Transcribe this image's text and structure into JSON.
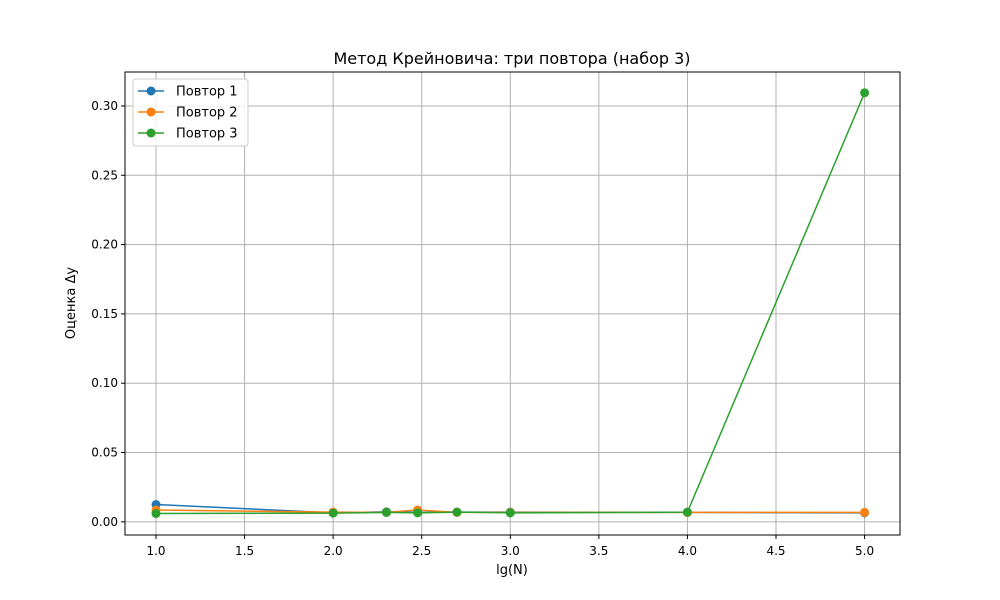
{
  "chart_data": {
    "type": "line",
    "title": "Метод Крейновича: три повтора (набор 3)",
    "xlabel": "lg(N)",
    "ylabel": "Оценка Δy",
    "xlim": [
      0.825,
      5.2
    ],
    "ylim": [
      -0.0095,
      0.3245
    ],
    "xticks": [
      1.0,
      1.5,
      2.0,
      2.5,
      3.0,
      3.5,
      4.0,
      4.5,
      5.0
    ],
    "xtick_labels": [
      "1.0",
      "1.5",
      "2.0",
      "2.5",
      "3.0",
      "3.5",
      "4.0",
      "4.5",
      "5.0"
    ],
    "yticks": [
      0.0,
      0.05,
      0.1,
      0.15,
      0.2,
      0.25,
      0.3
    ],
    "ytick_labels": [
      "0.00",
      "0.05",
      "0.10",
      "0.15",
      "0.20",
      "0.25",
      "0.30"
    ],
    "grid": true,
    "legend_position": "top-left",
    "x": [
      1.0,
      2.0,
      2.301,
      2.477,
      2.699,
      3.0,
      4.0,
      5.0
    ],
    "series": [
      {
        "name": "Повтор 1",
        "color": "#1f77b4",
        "values": [
          0.0125,
          0.0065,
          0.0072,
          0.0068,
          0.007,
          0.007,
          0.0068,
          0.0065
        ]
      },
      {
        "name": "Повтор 2",
        "color": "#ff7f0e",
        "values": [
          0.0085,
          0.007,
          0.0068,
          0.0085,
          0.0068,
          0.0068,
          0.0068,
          0.0068
        ]
      },
      {
        "name": "Повтор 3",
        "color": "#2ca02c",
        "values": [
          0.006,
          0.0063,
          0.0068,
          0.0065,
          0.007,
          0.0065,
          0.007,
          0.3095
        ]
      }
    ]
  }
}
